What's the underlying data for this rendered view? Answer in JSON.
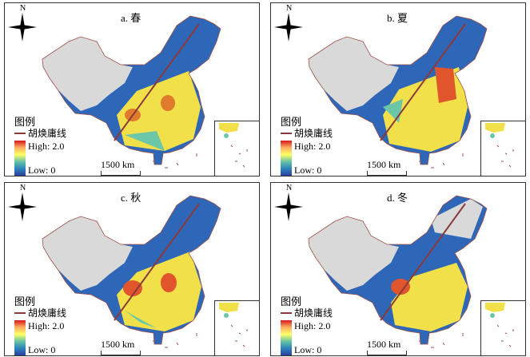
{
  "panels": [
    {
      "title": "a. 春",
      "season": "spring"
    },
    {
      "title": "b. 夏",
      "season": "summer"
    },
    {
      "title": "c. 秋",
      "season": "autumn"
    },
    {
      "title": "d. 冬",
      "season": "winter"
    }
  ],
  "compass_label": "N",
  "legend": {
    "heading": "图例",
    "line_label": "胡焕庸线",
    "high": "High: 2.0",
    "low": "Low: 0"
  },
  "scale_label": "1500 km",
  "colors": {
    "hu_line": "#8a3a3a",
    "no_data": "#d9d9d9",
    "low": "#2c5aa0",
    "high": "#d7191c"
  }
}
